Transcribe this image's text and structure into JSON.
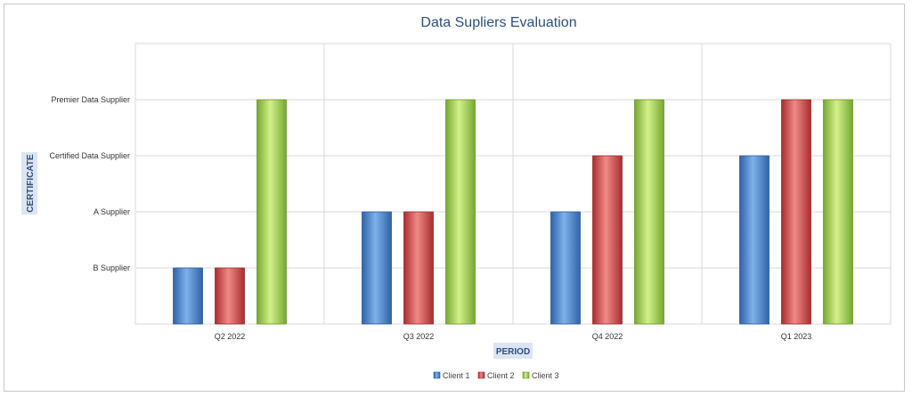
{
  "chart_data": {
    "type": "bar",
    "title": "Data Supliers Evaluation",
    "xlabel": "PERIOD",
    "ylabel": "CERTIFICATE",
    "categories": [
      "Q2 2022",
      "Q3 2022",
      "Q4 2022",
      "Q1 2023"
    ],
    "y_levels": [
      "B Supplier",
      "A Supplier",
      "Certified Data Supplier",
      "Premier Data Supplier"
    ],
    "ylim": [
      0,
      5
    ],
    "series": [
      {
        "name": "Client 1",
        "values": [
          1,
          2,
          2,
          3
        ],
        "color": "#4a86d0"
      },
      {
        "name": "Client 2",
        "values": [
          1,
          2,
          3,
          4
        ],
        "color": "#d24a4a"
      },
      {
        "name": "Client 3",
        "values": [
          4,
          4,
          4,
          4
        ],
        "color": "#9acd4c"
      }
    ],
    "grid": true,
    "legend_position": "bottom"
  }
}
